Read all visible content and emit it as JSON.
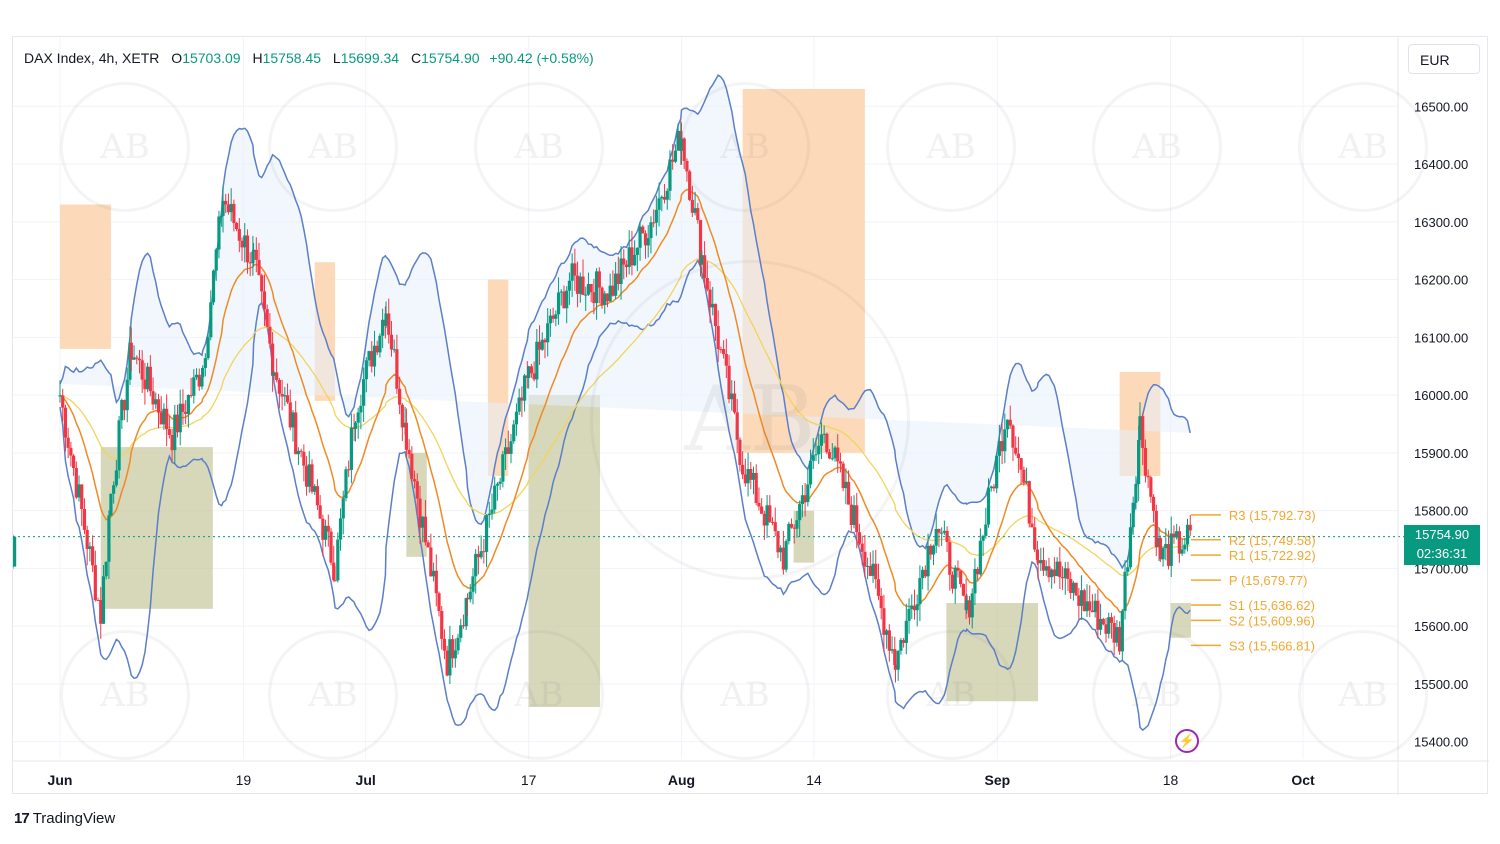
{
  "header": {
    "symbol": "DAX Index, 4h, XETR",
    "open_key": "O",
    "open": "15703.09",
    "high_key": "H",
    "high": "15758.45",
    "low_key": "L",
    "low": "15699.34",
    "close_key": "C",
    "close": "15754.90",
    "change": "+90.42 (+0.58%)"
  },
  "currency_button": "EUR",
  "price_tag": {
    "price": "15754.90",
    "countdown": "02:36:31"
  },
  "branding": {
    "logo_mark": "17",
    "name": "TradingView"
  },
  "watermark_text": "AB",
  "colors": {
    "up": "#089981",
    "down": "#f23645",
    "band": "#5b7fc9",
    "band_fill": "#e6f0fb",
    "ema_fast": "#f08a24",
    "ema_slow": "#f2d45c",
    "pivot": "#f0a830",
    "supply": "#fbd3ad",
    "demand": "#c9c9a3"
  },
  "chart_data": {
    "type": "candlestick",
    "y_axis": {
      "min": 15370,
      "max": 16620,
      "ticks": [
        "16500.00",
        "16400.00",
        "16300.00",
        "16200.00",
        "16100.00",
        "16000.00",
        "15900.00",
        "15800.00",
        "15700.00",
        "15600.00",
        "15500.00",
        "15400.00"
      ]
    },
    "x_axis": {
      "labels": [
        "Jun",
        "19",
        "Jul",
        "17",
        "Aug",
        "14",
        "Sep",
        "18",
        "Oct"
      ],
      "date_range": [
        "2023-06-01",
        "2023-10-01"
      ]
    },
    "path_anchors": [
      [
        "2023-06-01",
        16000
      ],
      [
        "2023-06-05",
        15620
      ],
      [
        "2023-06-06",
        15830
      ],
      [
        "2023-06-08",
        16080
      ],
      [
        "2023-06-12",
        15930
      ],
      [
        "2023-06-15",
        16050
      ],
      [
        "2023-06-17",
        16340
      ],
      [
        "2023-06-20",
        16230
      ],
      [
        "2023-06-22",
        16050
      ],
      [
        "2023-06-26",
        15820
      ],
      [
        "2023-06-28",
        15700
      ],
      [
        "2023-06-30",
        15980
      ],
      [
        "2023-07-03",
        16150
      ],
      [
        "2023-07-05",
        15930
      ],
      [
        "2023-07-09",
        15540
      ],
      [
        "2023-07-11",
        15650
      ],
      [
        "2023-07-17",
        16030
      ],
      [
        "2023-07-21",
        16200
      ],
      [
        "2023-07-25",
        16180
      ],
      [
        "2023-07-29",
        16300
      ],
      [
        "2023-08-01",
        16450
      ],
      [
        "2023-08-03",
        16240
      ],
      [
        "2023-08-07",
        15880
      ],
      [
        "2023-08-11",
        15720
      ],
      [
        "2023-08-15",
        15940
      ],
      [
        "2023-08-19",
        15730
      ],
      [
        "2023-08-22",
        15540
      ],
      [
        "2023-08-26",
        15780
      ],
      [
        "2023-08-29",
        15620
      ],
      [
        "2023-09-02",
        15980
      ],
      [
        "2023-09-05",
        15730
      ],
      [
        "2023-09-09",
        15650
      ],
      [
        "2023-09-13",
        15580
      ],
      [
        "2023-09-15",
        15950
      ],
      [
        "2023-09-17",
        15720
      ],
      [
        "2023-09-20",
        15755
      ]
    ],
    "last_candle": {
      "open": 15703.09,
      "high": 15758.45,
      "low": 15699.34,
      "close": 15754.9
    },
    "pivot_levels": [
      {
        "name": "R3",
        "value": 15792.73,
        "label": "R3 (15,792.73)"
      },
      {
        "name": "R2",
        "value": 15749.58,
        "label": "R2 (15,749.58)"
      },
      {
        "name": "R1",
        "value": 15722.92,
        "label": "R1 (15,722.92)"
      },
      {
        "name": "P",
        "value": 15679.77,
        "label": "P (15,679.77)"
      },
      {
        "name": "S1",
        "value": 15636.62,
        "label": "S1 (15,636.62)"
      },
      {
        "name": "S2",
        "value": 15609.96,
        "label": "S2 (15,609.96)"
      },
      {
        "name": "S3",
        "value": 15566.81,
        "label": "S3 (15,566.81)"
      }
    ],
    "zones": [
      {
        "kind": "supply",
        "from": "2023-06-01",
        "to": "2023-06-06",
        "top": 16330,
        "bottom": 16080
      },
      {
        "kind": "supply",
        "from": "2023-06-26",
        "to": "2023-06-28",
        "top": 16230,
        "bottom": 15990
      },
      {
        "kind": "supply",
        "from": "2023-07-13",
        "to": "2023-07-15",
        "top": 16200,
        "bottom": 15860
      },
      {
        "kind": "supply",
        "from": "2023-08-07",
        "to": "2023-08-19",
        "top": 16530,
        "bottom": 15900
      },
      {
        "kind": "supply",
        "from": "2023-09-13",
        "to": "2023-09-17",
        "top": 16040,
        "bottom": 15860
      },
      {
        "kind": "demand",
        "from": "2023-06-05",
        "to": "2023-06-16",
        "top": 15910,
        "bottom": 15630
      },
      {
        "kind": "demand",
        "from": "2023-07-05",
        "to": "2023-07-07",
        "top": 15900,
        "bottom": 15720
      },
      {
        "kind": "demand",
        "from": "2023-07-17",
        "to": "2023-07-24",
        "top": 16000,
        "bottom": 15460
      },
      {
        "kind": "demand",
        "from": "2023-08-12",
        "to": "2023-08-14",
        "top": 15800,
        "bottom": 15710
      },
      {
        "kind": "demand",
        "from": "2023-08-27",
        "to": "2023-09-05",
        "top": 15640,
        "bottom": 15470
      },
      {
        "kind": "demand",
        "from": "2023-09-18",
        "to": "2023-09-20",
        "top": 15640,
        "bottom": 15580
      }
    ]
  }
}
